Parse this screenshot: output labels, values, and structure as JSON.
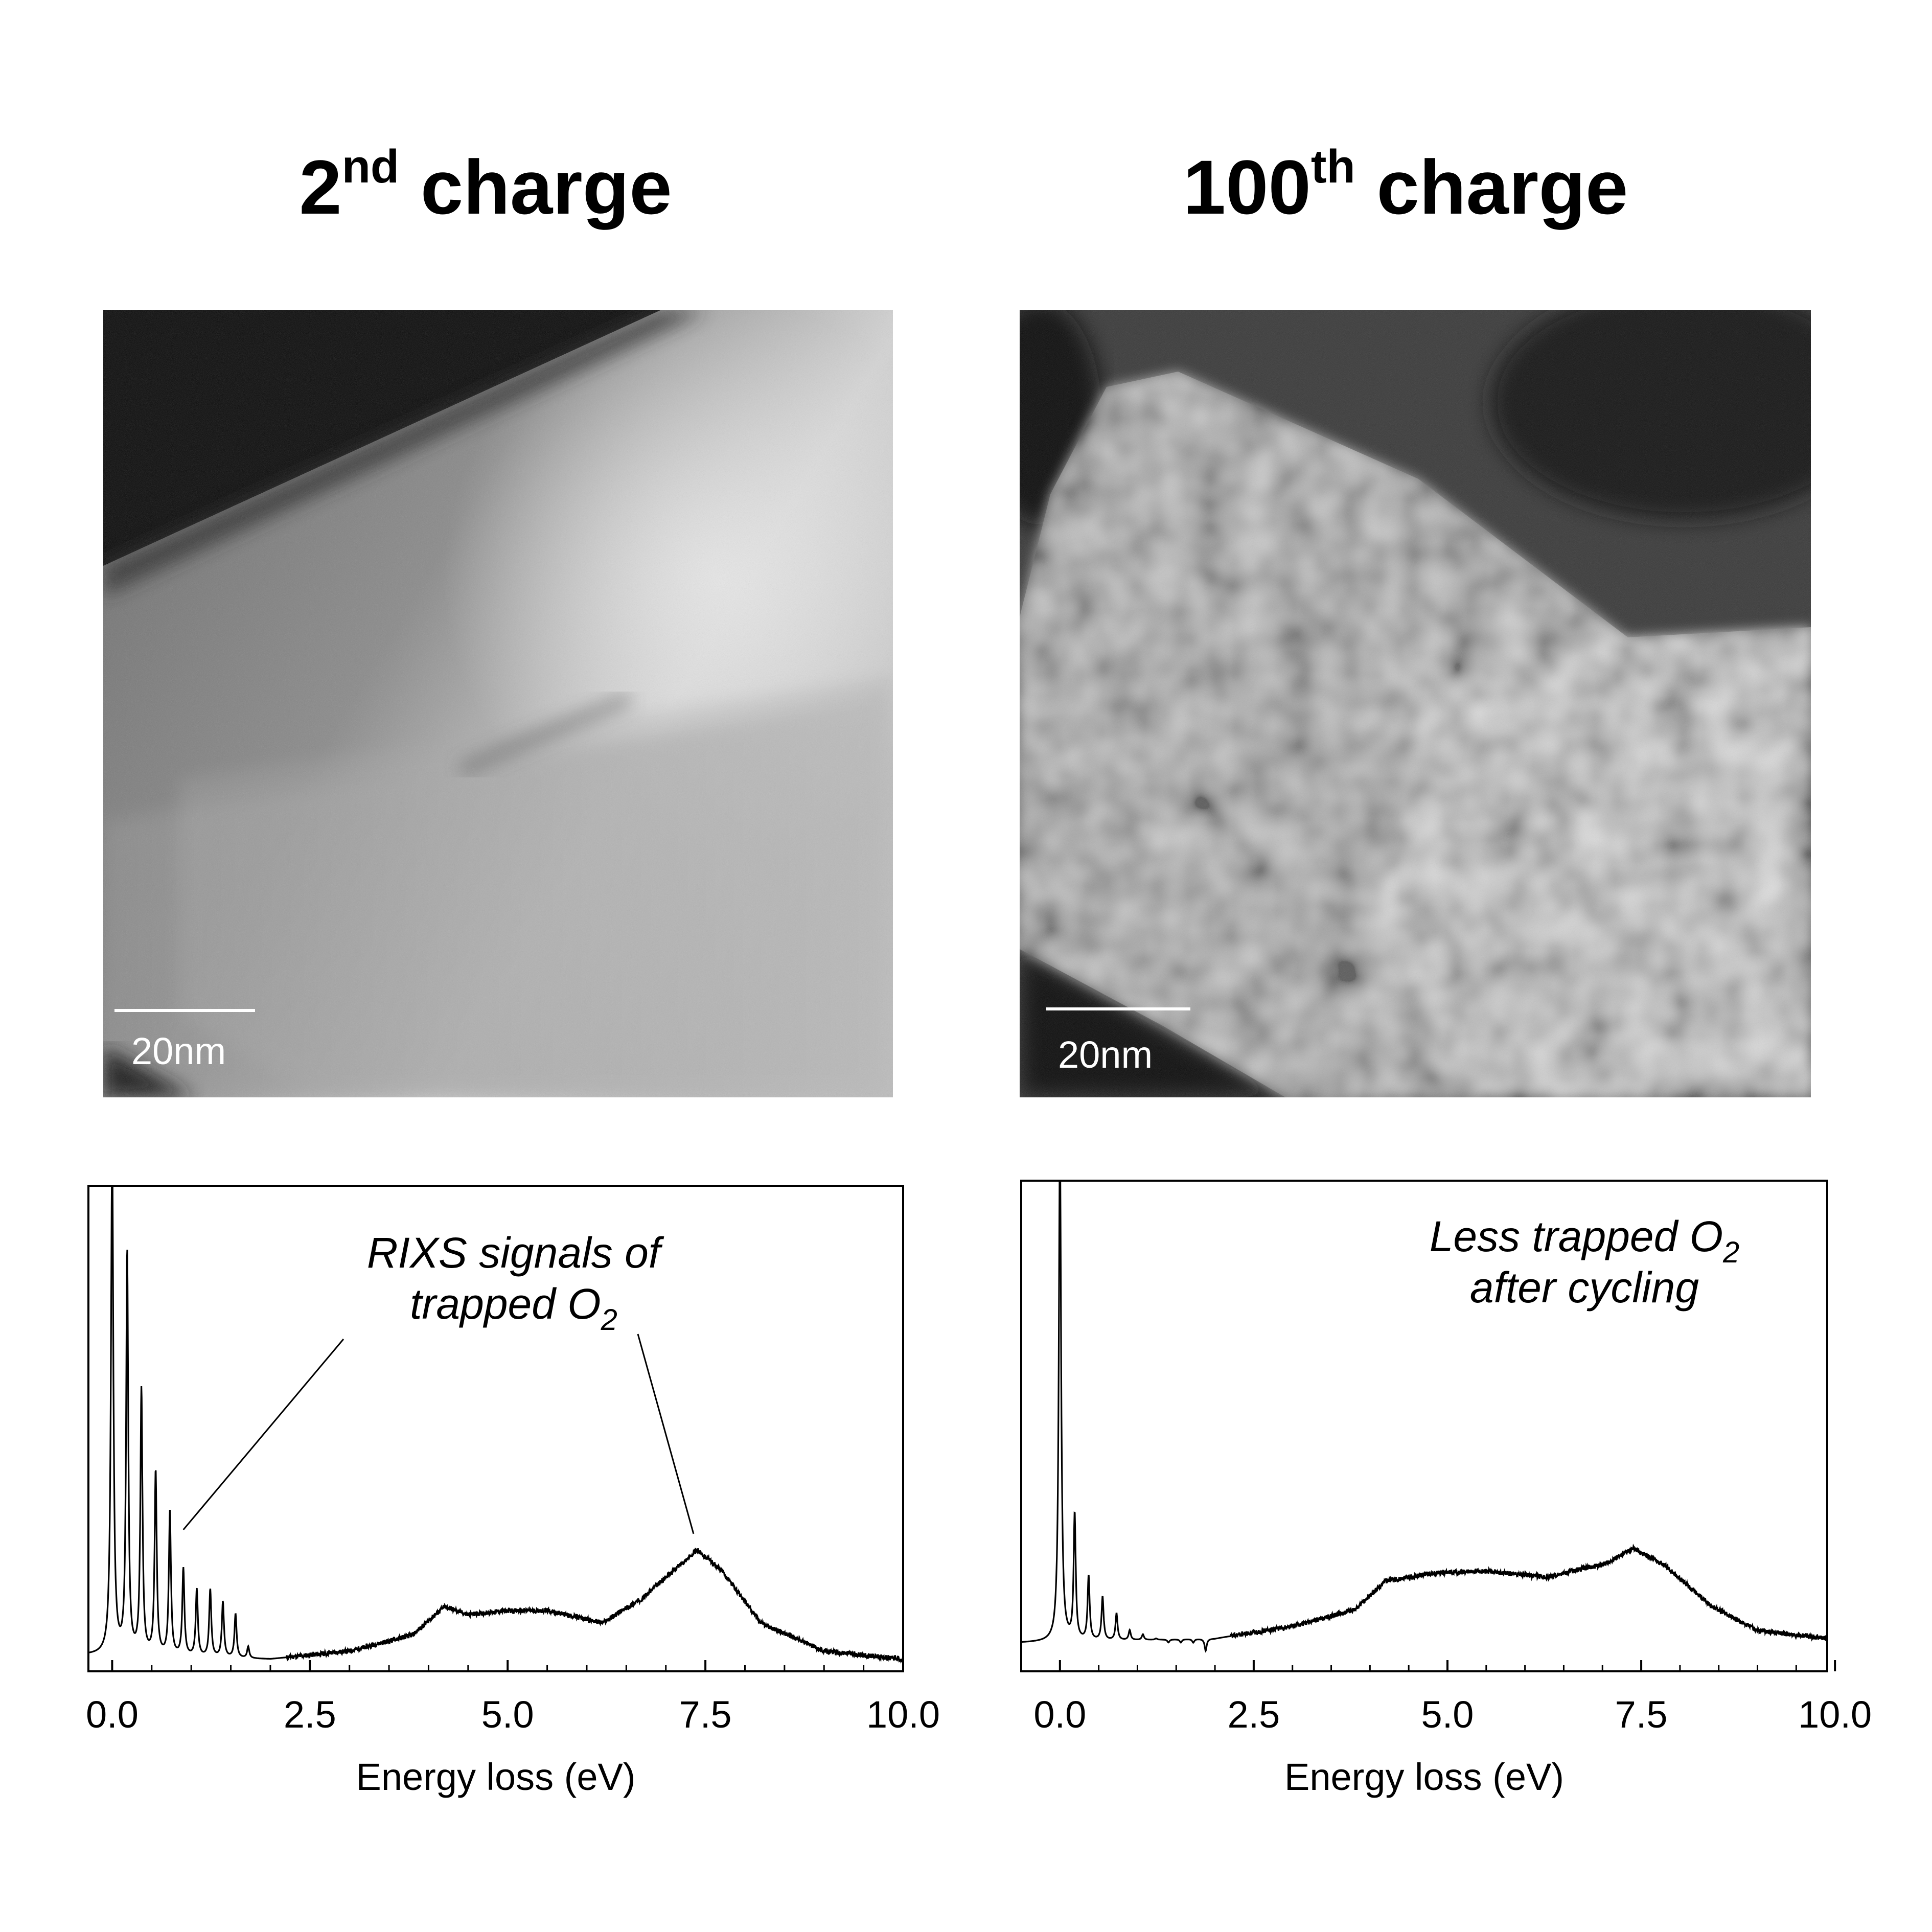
{
  "panels": [
    {
      "title_main": "2",
      "title_sup": "nd",
      "title_rest": " charge",
      "scalebar_label": "20nm",
      "annotation_lines": [
        "RIXS signals of",
        "trapped O"
      ],
      "annotation_subscript": "2"
    },
    {
      "title_main": "100",
      "title_sup": "th",
      "title_rest": " charge",
      "scalebar_label": "20nm",
      "annotation_lines": [
        "Less trapped O",
        "after cycling"
      ],
      "annotation_subscript": "2"
    }
  ],
  "chart_data": [
    {
      "type": "line",
      "title": "",
      "xlabel": "Energy loss (eV)",
      "ylabel": "",
      "xlim": [
        -0.3,
        10.0
      ],
      "ylim": [
        0,
        1.2
      ],
      "xticks": [
        "0.0",
        "2.5",
        "5.0",
        "7.5",
        "10.0"
      ],
      "xtick_values": [
        0.0,
        2.5,
        5.0,
        7.5,
        10.0
      ],
      "y_ticks_shown": false,
      "series": [
        {
          "elastic_peak": {
            "x": 0.0,
            "y": 1.3
          },
          "vibronic_peaks": [
            {
              "x": 0.19,
              "y": 1.03
            },
            {
              "x": 0.37,
              "y": 0.69
            },
            {
              "x": 0.55,
              "y": 0.49
            },
            {
              "x": 0.73,
              "y": 0.39
            },
            {
              "x": 0.9,
              "y": 0.25
            },
            {
              "x": 1.07,
              "y": 0.2
            },
            {
              "x": 1.24,
              "y": 0.2
            },
            {
              "x": 1.4,
              "y": 0.17
            },
            {
              "x": 1.56,
              "y": 0.14
            },
            {
              "x": 1.72,
              "y": 0.06
            }
          ],
          "baseline": [
            {
              "x": -0.3,
              "y": 0.04
            },
            {
              "x": 2.0,
              "y": 0.03
            },
            {
              "x": 3.0,
              "y": 0.05
            },
            {
              "x": 3.8,
              "y": 0.09
            },
            {
              "x": 4.2,
              "y": 0.16
            },
            {
              "x": 4.5,
              "y": 0.14
            },
            {
              "x": 5.0,
              "y": 0.15
            },
            {
              "x": 5.5,
              "y": 0.15
            },
            {
              "x": 6.2,
              "y": 0.12
            },
            {
              "x": 6.7,
              "y": 0.18
            },
            {
              "x": 7.1,
              "y": 0.25
            },
            {
              "x": 7.4,
              "y": 0.3
            },
            {
              "x": 7.7,
              "y": 0.25
            },
            {
              "x": 8.2,
              "y": 0.12
            },
            {
              "x": 9.0,
              "y": 0.05
            },
            {
              "x": 10.0,
              "y": 0.03
            }
          ]
        }
      ],
      "annotation_pointers": [
        {
          "x": 0.9,
          "y": 0.35
        },
        {
          "x": 7.35,
          "y": 0.34
        }
      ]
    },
    {
      "type": "line",
      "title": "",
      "xlabel": "Energy loss (eV)",
      "ylabel": "",
      "xlim": [
        -0.5,
        9.9
      ],
      "ylim": [
        0,
        1.2
      ],
      "xticks": [
        "0.0",
        "2.5",
        "5.0",
        "7.5",
        "10.0"
      ],
      "xtick_values": [
        0.0,
        2.5,
        5.0,
        7.5,
        10.0
      ],
      "y_ticks_shown": false,
      "series": [
        {
          "elastic_peak": {
            "x": 0.0,
            "y": 1.3
          },
          "vibronic_peaks": [
            {
              "x": 0.19,
              "y": 0.38
            },
            {
              "x": 0.37,
              "y": 0.23
            },
            {
              "x": 0.55,
              "y": 0.18
            },
            {
              "x": 0.73,
              "y": 0.14
            },
            {
              "x": 0.9,
              "y": 0.1
            },
            {
              "x": 1.07,
              "y": 0.09
            },
            {
              "x": 1.24,
              "y": 0.08
            },
            {
              "x": 1.4,
              "y": 0.07
            },
            {
              "x": 1.56,
              "y": 0.07
            },
            {
              "x": 1.72,
              "y": 0.07
            },
            {
              "x": 1.88,
              "y": 0.05
            }
          ],
          "baseline": [
            {
              "x": -0.5,
              "y": 0.07
            },
            {
              "x": 2.0,
              "y": 0.08
            },
            {
              "x": 3.0,
              "y": 0.11
            },
            {
              "x": 3.8,
              "y": 0.15
            },
            {
              "x": 4.2,
              "y": 0.22
            },
            {
              "x": 4.8,
              "y": 0.24
            },
            {
              "x": 5.5,
              "y": 0.245
            },
            {
              "x": 6.3,
              "y": 0.23
            },
            {
              "x": 6.7,
              "y": 0.25
            },
            {
              "x": 7.0,
              "y": 0.26
            },
            {
              "x": 7.4,
              "y": 0.3
            },
            {
              "x": 7.8,
              "y": 0.26
            },
            {
              "x": 8.4,
              "y": 0.16
            },
            {
              "x": 9.0,
              "y": 0.1
            },
            {
              "x": 9.9,
              "y": 0.08
            }
          ]
        }
      ],
      "annotation_pointers": []
    }
  ]
}
